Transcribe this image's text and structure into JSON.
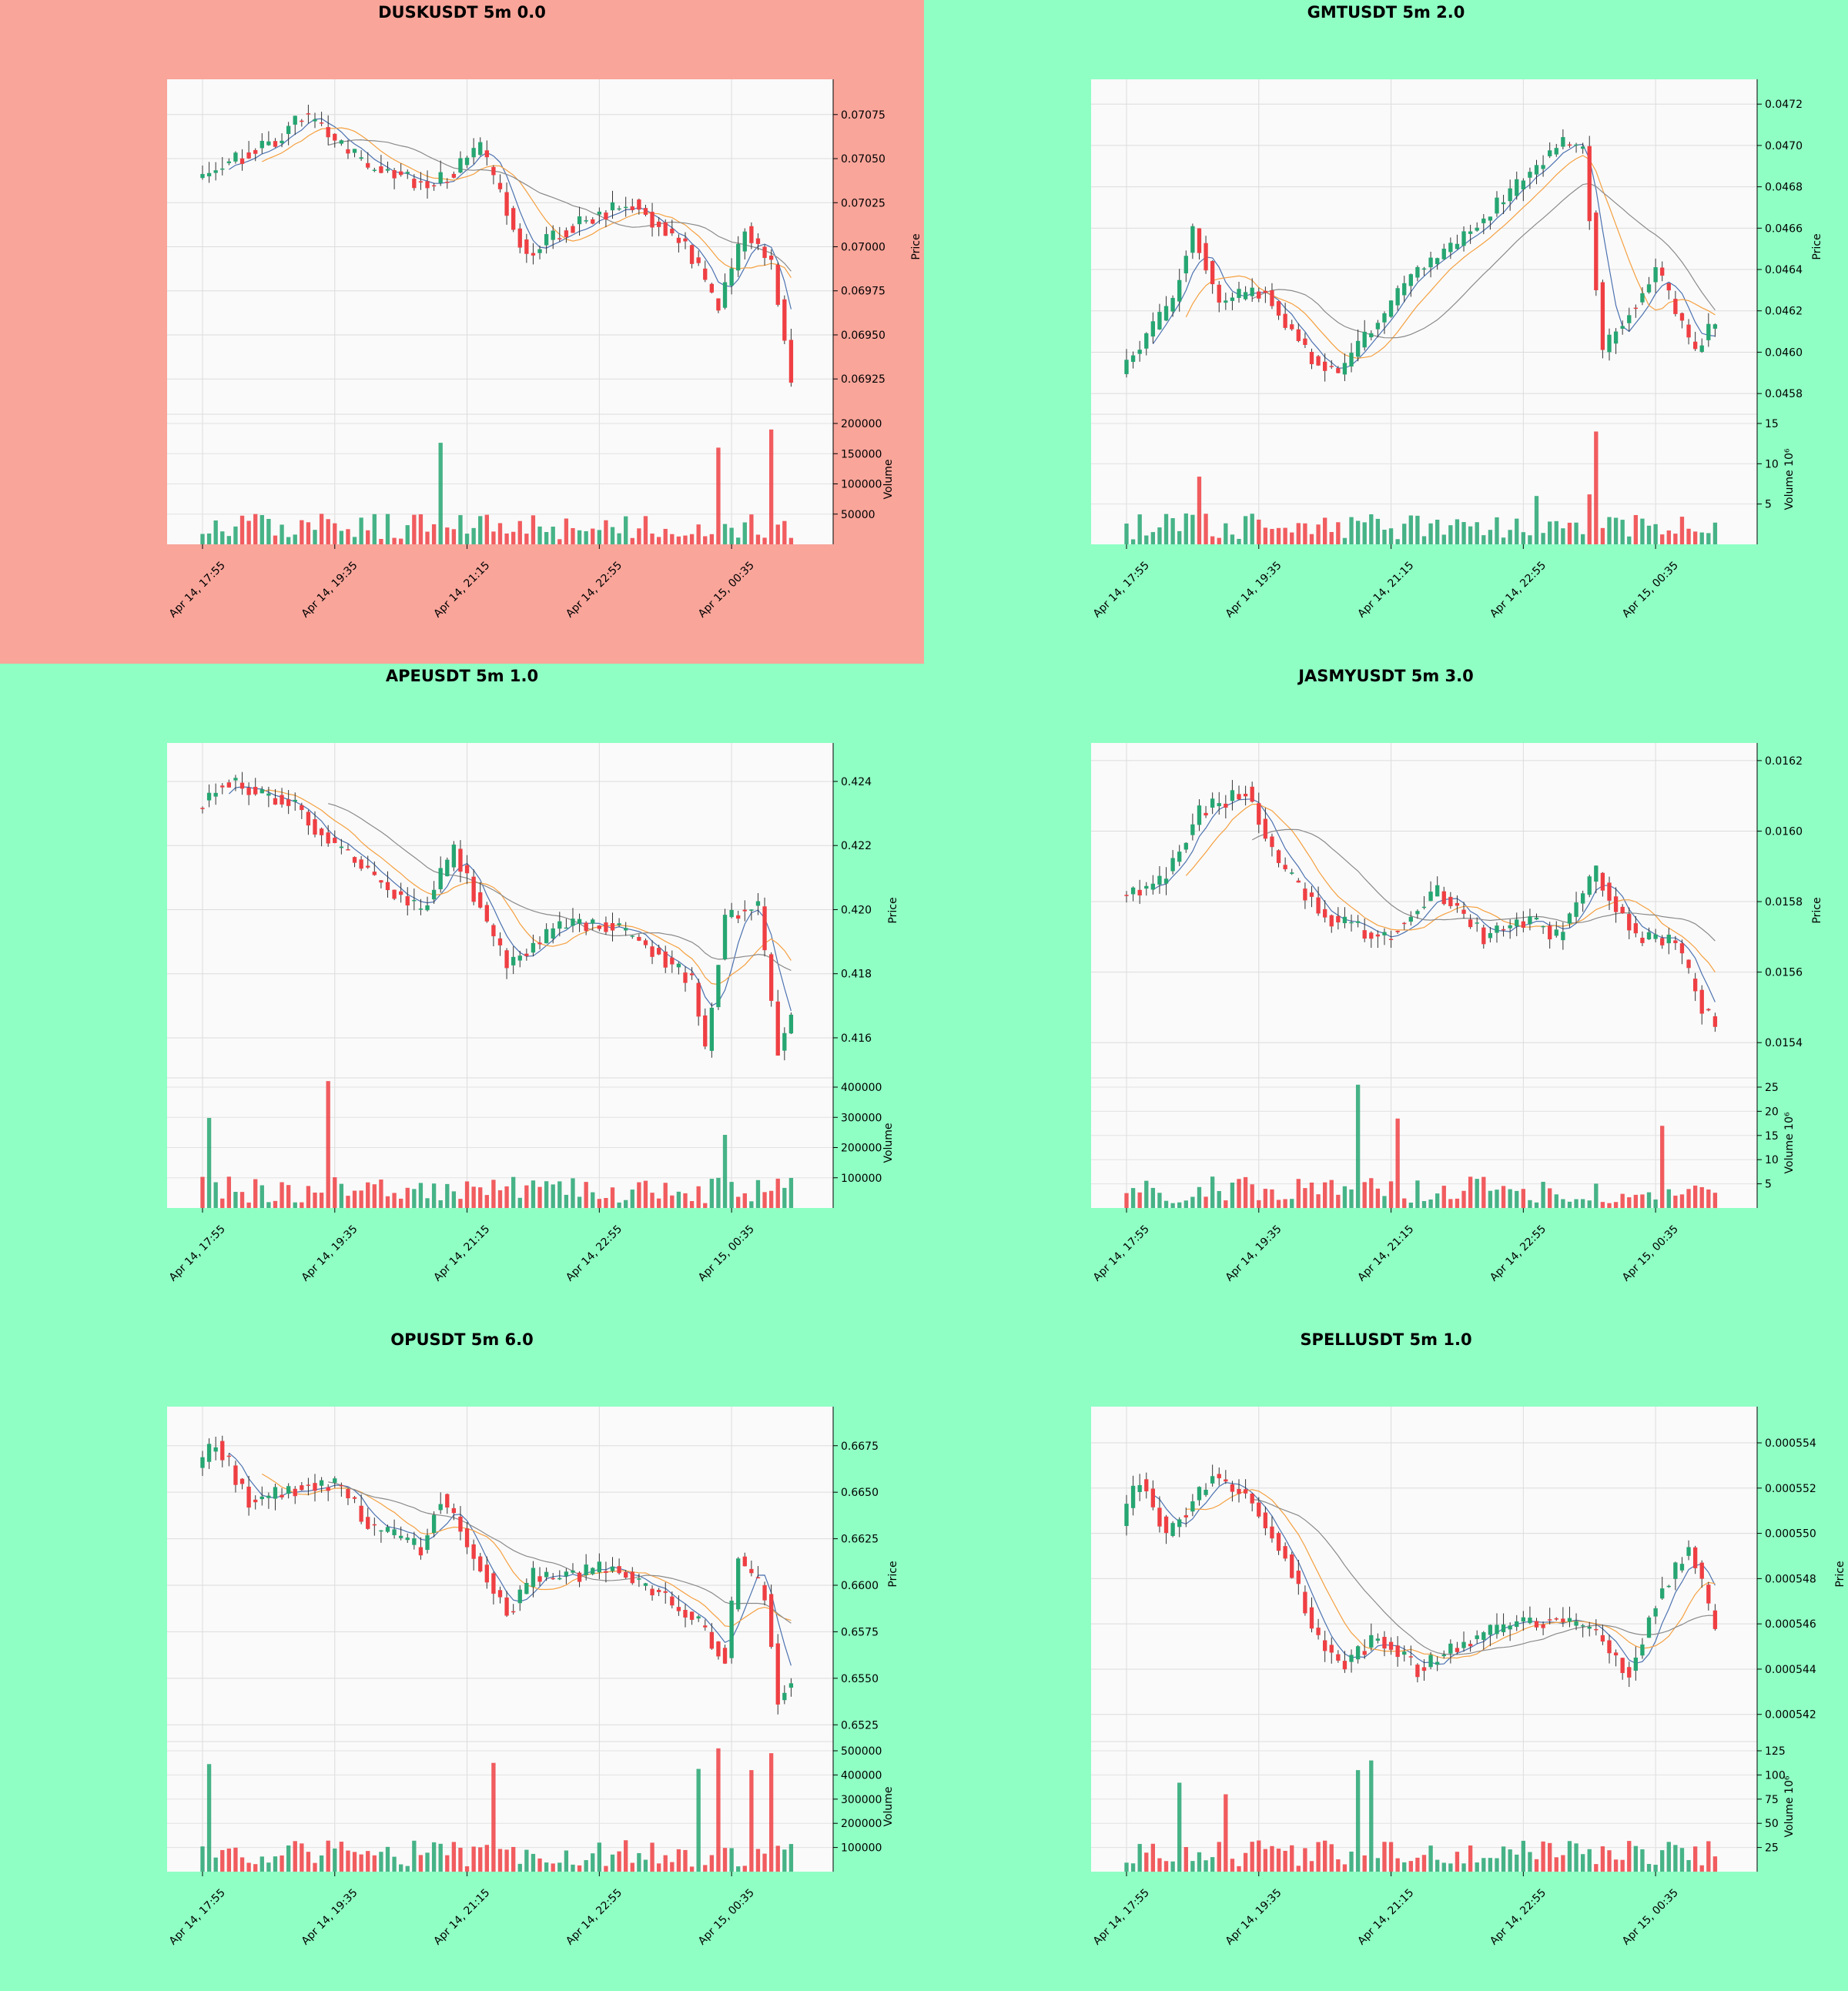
{
  "figure": {
    "background": "#8fffc4",
    "highlight_color": "#f9a59a",
    "plot_bg": "#fafafa",
    "up_color": "#26a672",
    "down_color": "#ef3f43",
    "ma_colors": [
      "#4c72b0",
      "#f5a040",
      "#8a8a8a"
    ]
  },
  "chart_data": [
    {
      "type": "candlestick",
      "title": "DUSKUSDT 5m 0.0",
      "highlighted": true,
      "ylabel": "Price",
      "volume_label": "Volume",
      "x_ticks": [
        "Apr 14, 17:55",
        "Apr 14, 19:35",
        "Apr 14, 21:15",
        "Apr 14, 22:55",
        "Apr 15, 00:35"
      ],
      "price_ticks": [
        "0.07075",
        "0.07050",
        "0.07025",
        "0.07000",
        "0.06975",
        "0.06950",
        "0.06925"
      ],
      "price_ylim": [
        0.06905,
        0.07095
      ],
      "volume_ticks": [
        "200000",
        "150000",
        "100000",
        "50000"
      ],
      "volume_ylim": [
        0,
        200000
      ],
      "candles": {
        "count": 90,
        "start": 0.0704,
        "end": 0.0693,
        "anchors": [
          [
            0,
            0.0704
          ],
          [
            12,
            0.0706
          ],
          [
            16,
            0.07075
          ],
          [
            26,
            0.07045
          ],
          [
            36,
            0.07035
          ],
          [
            43,
            0.07055
          ],
          [
            50,
            0.06995
          ],
          [
            58,
            0.07015
          ],
          [
            66,
            0.07025
          ],
          [
            74,
            0.07
          ],
          [
            79,
            0.06965
          ],
          [
            83,
            0.0701
          ],
          [
            87,
            0.0699
          ],
          [
            90,
            0.06925
          ]
        ],
        "vol_max": 200000,
        "spikes": [
          [
            36,
            168000
          ],
          [
            78,
            160000
          ],
          [
            86,
            190000
          ]
        ]
      }
    },
    {
      "type": "candlestick",
      "title": "GMTUSDT 5m 2.0",
      "highlighted": false,
      "ylabel": "Price",
      "volume_label": "Volume  10⁶",
      "x_ticks": [
        "Apr 14, 17:55",
        "Apr 14, 19:35",
        "Apr 14, 21:15",
        "Apr 14, 22:55",
        "Apr 15, 00:35"
      ],
      "price_ticks": [
        "0.0472",
        "0.0470",
        "0.0468",
        "0.0466",
        "0.0464",
        "0.0462",
        "0.0460",
        "0.0458"
      ],
      "price_ylim": [
        0.0457,
        0.04732
      ],
      "volume_ticks": [
        "15",
        "10",
        "5"
      ],
      "volume_ylim": [
        0,
        15
      ],
      "candles": {
        "count": 90,
        "start": 0.0459,
        "end": 0.0461,
        "anchors": [
          [
            0,
            0.0459
          ],
          [
            8,
            0.04625
          ],
          [
            11,
            0.0466
          ],
          [
            15,
            0.04625
          ],
          [
            22,
            0.0463
          ],
          [
            28,
            0.046
          ],
          [
            33,
            0.0459
          ],
          [
            38,
            0.0461
          ],
          [
            45,
            0.0464
          ],
          [
            50,
            0.0465
          ],
          [
            60,
            0.0468
          ],
          [
            66,
            0.047
          ],
          [
            70,
            0.047
          ],
          [
            73,
            0.046
          ],
          [
            77,
            0.0462
          ],
          [
            81,
            0.0464
          ],
          [
            87,
            0.046
          ],
          [
            90,
            0.04615
          ]
        ],
        "vol_max": 15,
        "spikes": [
          [
            71,
            14
          ],
          [
            11,
            8.4
          ],
          [
            70,
            6.2
          ],
          [
            62,
            6
          ]
        ]
      }
    },
    {
      "type": "candlestick",
      "title": "APEUSDT 5m 1.0",
      "highlighted": false,
      "ylabel": "Price",
      "volume_label": "Volume",
      "x_ticks": [
        "Apr 14, 17:55",
        "Apr 14, 19:35",
        "Apr 14, 21:15",
        "Apr 14, 22:55",
        "Apr 15, 00:35"
      ],
      "price_ticks": [
        "0.424",
        "0.422",
        "0.420",
        "0.418",
        "0.416"
      ],
      "price_ylim": [
        0.41475,
        0.4252
      ],
      "volume_ticks": [
        "400000",
        "300000",
        "200000",
        "100000"
      ],
      "volume_ylim": [
        0,
        400000
      ],
      "candles": {
        "count": 90,
        "start": 0.4232,
        "end": 0.4167,
        "anchors": [
          [
            0,
            0.4232
          ],
          [
            4,
            0.424
          ],
          [
            14,
            0.4234
          ],
          [
            22,
            0.4218
          ],
          [
            34,
            0.4199
          ],
          [
            39,
            0.4218
          ],
          [
            47,
            0.4183
          ],
          [
            55,
            0.4195
          ],
          [
            63,
            0.4195
          ],
          [
            70,
            0.4186
          ],
          [
            75,
            0.4178
          ],
          [
            77,
            0.4156
          ],
          [
            80,
            0.4198
          ],
          [
            85,
            0.4201
          ],
          [
            88,
            0.4156
          ],
          [
            90,
            0.4168
          ]
        ],
        "vol_max": 400000,
        "spikes": [
          [
            19,
            420000
          ],
          [
            1,
            298000
          ],
          [
            79,
            242000
          ]
        ]
      }
    },
    {
      "type": "candlestick",
      "title": "JASMYUSDT 5m 3.0",
      "highlighted": false,
      "ylabel": "Price",
      "volume_label": "Volume  10⁶",
      "x_ticks": [
        "Apr 14, 17:55",
        "Apr 14, 19:35",
        "Apr 14, 21:15",
        "Apr 14, 22:55",
        "Apr 15, 00:35"
      ],
      "price_ticks": [
        "0.0162",
        "0.0160",
        "0.0158",
        "0.0156",
        "0.0154"
      ],
      "price_ylim": [
        0.0153,
        0.01625
      ],
      "volume_ticks": [
        "25",
        "20",
        "15",
        "10",
        "5"
      ],
      "volume_ylim": [
        0,
        25
      ],
      "candles": {
        "count": 90,
        "start": 0.01582,
        "end": 0.01545,
        "anchors": [
          [
            0,
            0.01582
          ],
          [
            6,
            0.01585
          ],
          [
            12,
            0.01605
          ],
          [
            19,
            0.01612
          ],
          [
            24,
            0.0159
          ],
          [
            32,
            0.01575
          ],
          [
            40,
            0.0157
          ],
          [
            48,
            0.01583
          ],
          [
            55,
            0.0157
          ],
          [
            62,
            0.01575
          ],
          [
            66,
            0.0157
          ],
          [
            72,
            0.01588
          ],
          [
            78,
            0.0157
          ],
          [
            84,
            0.01568
          ],
          [
            88,
            0.0155
          ],
          [
            90,
            0.01545
          ]
        ],
        "vol_max": 25,
        "spikes": [
          [
            35,
            25.5
          ],
          [
            41,
            18.5
          ],
          [
            81,
            17
          ]
        ]
      }
    },
    {
      "type": "candlestick",
      "title": "OPUSDT 5m 6.0",
      "highlighted": false,
      "ylabel": "Price",
      "volume_label": "Volume",
      "x_ticks": [
        "Apr 14, 17:55",
        "Apr 14, 19:35",
        "Apr 14, 21:15",
        "Apr 14, 22:55",
        "Apr 15, 00:35"
      ],
      "price_ticks": [
        "0.6675",
        "0.6650",
        "0.6625",
        "0.6600",
        "0.6575",
        "0.6550",
        "0.6525"
      ],
      "price_ylim": [
        0.6516,
        0.6696
      ],
      "volume_ticks": [
        "500000",
        "400000",
        "300000",
        "200000",
        "100000"
      ],
      "volume_ylim": [
        0,
        500000
      ],
      "candles": {
        "count": 90,
        "start": 0.6663,
        "end": 0.6548,
        "anchors": [
          [
            0,
            0.6663
          ],
          [
            3,
            0.6678
          ],
          [
            8,
            0.6645
          ],
          [
            16,
            0.6653
          ],
          [
            21,
            0.6655
          ],
          [
            27,
            0.663
          ],
          [
            34,
            0.662
          ],
          [
            37,
            0.6648
          ],
          [
            44,
            0.6605
          ],
          [
            47,
            0.6585
          ],
          [
            51,
            0.6605
          ],
          [
            57,
            0.6605
          ],
          [
            63,
            0.661
          ],
          [
            70,
            0.6595
          ],
          [
            76,
            0.658
          ],
          [
            80,
            0.656
          ],
          [
            82,
            0.6615
          ],
          [
            86,
            0.6595
          ],
          [
            88,
            0.654
          ],
          [
            90,
            0.6548
          ]
        ],
        "vol_max": 500000,
        "spikes": [
          [
            78,
            510000
          ],
          [
            86,
            490000
          ],
          [
            44,
            450000
          ],
          [
            1,
            445000
          ],
          [
            75,
            425000
          ],
          [
            83,
            420000
          ]
        ]
      }
    },
    {
      "type": "candlestick",
      "title": "SPELLUSDT 5m 1.0",
      "highlighted": false,
      "ylabel": "Price",
      "volume_label": "Volume  10⁶",
      "x_ticks": [
        "Apr 14, 17:55",
        "Apr 14, 19:35",
        "Apr 14, 21:15",
        "Apr 14, 22:55",
        "Apr 15, 00:35"
      ],
      "price_ticks": [
        "0.000554",
        "0.000552",
        "0.000550",
        "0.000548",
        "0.000546",
        "0.000544",
        "0.000542"
      ],
      "price_ylim": [
        0.0005408,
        0.0005556
      ],
      "volume_ticks": [
        "125",
        "100",
        "75",
        "50",
        "25"
      ],
      "volume_ylim": [
        0,
        125
      ],
      "candles": {
        "count": 90,
        "start": 0.0005503,
        "end": 0.0005458,
        "anchors": [
          [
            0,
            0.0005503
          ],
          [
            3,
            0.0005525
          ],
          [
            7,
            0.00055
          ],
          [
            14,
            0.0005525
          ],
          [
            19,
            0.0005518
          ],
          [
            25,
            0.000549
          ],
          [
            30,
            0.0005452
          ],
          [
            34,
            0.0005442
          ],
          [
            39,
            0.0005455
          ],
          [
            45,
            0.000544
          ],
          [
            51,
            0.000545
          ],
          [
            59,
            0.000546
          ],
          [
            67,
            0.0005462
          ],
          [
            72,
            0.0005455
          ],
          [
            77,
            0.0005438
          ],
          [
            81,
            0.000547
          ],
          [
            86,
            0.0005495
          ],
          [
            90,
            0.0005458
          ]
        ],
        "vol_max": 125,
        "spikes": [
          [
            37,
            115
          ],
          [
            35,
            105
          ],
          [
            8,
            92
          ],
          [
            15,
            80
          ]
        ]
      }
    }
  ]
}
